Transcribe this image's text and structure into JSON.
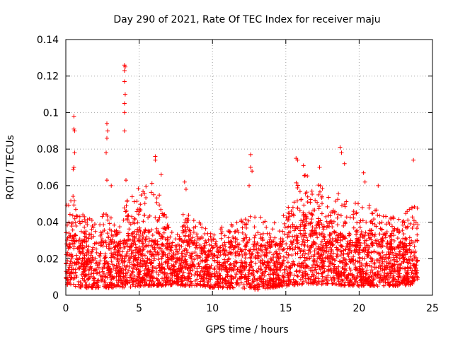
{
  "chart_data": {
    "type": "scatter",
    "title": "Day 290 of 2021, Rate Of TEC Index for receiver maju",
    "xlabel": "GPS time / hours",
    "ylabel": "ROTI / TECUs",
    "xlim": [
      0,
      25
    ],
    "ylim": [
      0,
      0.14
    ],
    "xticks": [
      0,
      5,
      10,
      15,
      20,
      25
    ],
    "xtick_labels": [
      "0",
      "5",
      "10",
      "15",
      "20",
      "25"
    ],
    "yticks": [
      0,
      0.02,
      0.04,
      0.06,
      0.08,
      0.1,
      0.12,
      0.14
    ],
    "ytick_labels": [
      "0",
      "0.02",
      "0.04",
      "0.06",
      "0.08",
      "0.1",
      "0.12",
      "0.14"
    ],
    "grid": true,
    "marker": "+",
    "color": "#ff0000",
    "series": [
      {
        "name": "ROTI",
        "profile": [
          {
            "x": 0.0,
            "low": 0.006,
            "high": 0.03,
            "top": 0.05
          },
          {
            "x": 0.5,
            "low": 0.005,
            "high": 0.034,
            "top": 0.055
          },
          {
            "x": 1.0,
            "low": 0.004,
            "high": 0.03,
            "top": 0.045
          },
          {
            "x": 2.0,
            "low": 0.004,
            "high": 0.028,
            "top": 0.04
          },
          {
            "x": 3.0,
            "low": 0.004,
            "high": 0.03,
            "top": 0.048
          },
          {
            "x": 3.6,
            "low": 0.005,
            "high": 0.026,
            "top": 0.035
          },
          {
            "x": 4.0,
            "low": 0.004,
            "high": 0.032,
            "top": 0.055
          },
          {
            "x": 5.0,
            "low": 0.005,
            "high": 0.034,
            "top": 0.06
          },
          {
            "x": 6.0,
            "low": 0.005,
            "high": 0.036,
            "top": 0.062
          },
          {
            "x": 7.0,
            "low": 0.005,
            "high": 0.03,
            "top": 0.045
          },
          {
            "x": 7.4,
            "low": 0.006,
            "high": 0.02,
            "top": 0.03
          },
          {
            "x": 8.0,
            "low": 0.005,
            "high": 0.032,
            "top": 0.045
          },
          {
            "x": 9.0,
            "low": 0.005,
            "high": 0.03,
            "top": 0.042
          },
          {
            "x": 10.0,
            "low": 0.004,
            "high": 0.026,
            "top": 0.036
          },
          {
            "x": 11.0,
            "low": 0.004,
            "high": 0.026,
            "top": 0.038
          },
          {
            "x": 12.0,
            "low": 0.004,
            "high": 0.028,
            "top": 0.045
          },
          {
            "x": 13.0,
            "low": 0.003,
            "high": 0.028,
            "top": 0.045
          },
          {
            "x": 14.0,
            "low": 0.004,
            "high": 0.026,
            "top": 0.04
          },
          {
            "x": 15.0,
            "low": 0.005,
            "high": 0.03,
            "top": 0.045
          },
          {
            "x": 16.0,
            "low": 0.006,
            "high": 0.044,
            "top": 0.07
          },
          {
            "x": 17.0,
            "low": 0.006,
            "high": 0.04,
            "top": 0.062
          },
          {
            "x": 18.0,
            "low": 0.006,
            "high": 0.036,
            "top": 0.058
          },
          {
            "x": 19.0,
            "low": 0.005,
            "high": 0.032,
            "top": 0.058
          },
          {
            "x": 20.0,
            "low": 0.005,
            "high": 0.03,
            "top": 0.05
          },
          {
            "x": 21.0,
            "low": 0.005,
            "high": 0.03,
            "top": 0.05
          },
          {
            "x": 22.0,
            "low": 0.005,
            "high": 0.028,
            "top": 0.042
          },
          {
            "x": 23.0,
            "low": 0.005,
            "high": 0.028,
            "top": 0.045
          },
          {
            "x": 24.0,
            "low": 0.006,
            "high": 0.03,
            "top": 0.05
          }
        ],
        "outliers": [
          {
            "x": 0.55,
            "y": 0.098
          },
          {
            "x": 0.55,
            "y": 0.091
          },
          {
            "x": 0.6,
            "y": 0.09
          },
          {
            "x": 0.6,
            "y": 0.078
          },
          {
            "x": 0.55,
            "y": 0.07
          },
          {
            "x": 0.5,
            "y": 0.069
          },
          {
            "x": 2.8,
            "y": 0.094
          },
          {
            "x": 2.85,
            "y": 0.09
          },
          {
            "x": 2.8,
            "y": 0.086
          },
          {
            "x": 2.75,
            "y": 0.078
          },
          {
            "x": 2.8,
            "y": 0.063
          },
          {
            "x": 3.1,
            "y": 0.06
          },
          {
            "x": 4.0,
            "y": 0.126
          },
          {
            "x": 4.05,
            "y": 0.125
          },
          {
            "x": 4.0,
            "y": 0.123
          },
          {
            "x": 4.0,
            "y": 0.117
          },
          {
            "x": 4.05,
            "y": 0.11
          },
          {
            "x": 4.0,
            "y": 0.105
          },
          {
            "x": 4.0,
            "y": 0.1
          },
          {
            "x": 4.0,
            "y": 0.09
          },
          {
            "x": 4.1,
            "y": 0.063
          },
          {
            "x": 6.1,
            "y": 0.076
          },
          {
            "x": 6.1,
            "y": 0.074
          },
          {
            "x": 6.5,
            "y": 0.066
          },
          {
            "x": 8.1,
            "y": 0.062
          },
          {
            "x": 8.2,
            "y": 0.058
          },
          {
            "x": 12.6,
            "y": 0.077
          },
          {
            "x": 12.6,
            "y": 0.07
          },
          {
            "x": 12.7,
            "y": 0.068
          },
          {
            "x": 12.5,
            "y": 0.06
          },
          {
            "x": 15.7,
            "y": 0.075
          },
          {
            "x": 15.8,
            "y": 0.074
          },
          {
            "x": 16.2,
            "y": 0.071
          },
          {
            "x": 17.3,
            "y": 0.07
          },
          {
            "x": 18.7,
            "y": 0.081
          },
          {
            "x": 18.8,
            "y": 0.078
          },
          {
            "x": 19.0,
            "y": 0.072
          },
          {
            "x": 20.3,
            "y": 0.067
          },
          {
            "x": 20.4,
            "y": 0.062
          },
          {
            "x": 21.3,
            "y": 0.06
          },
          {
            "x": 23.7,
            "y": 0.074
          },
          {
            "x": 23.6,
            "y": 0.048
          }
        ]
      }
    ]
  }
}
